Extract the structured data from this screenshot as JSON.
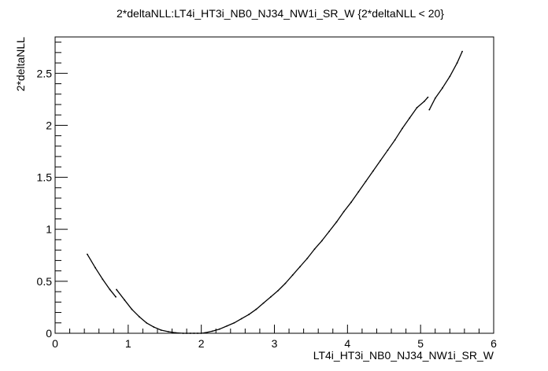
{
  "chart_data": {
    "type": "scatter",
    "title": "2*deltaNLL:LT4i_HT3i_NB0_NJ34_NW1i_SR_W {2*deltaNLL < 20}",
    "xlabel": "LT4i_HT3i_NB0_NJ34_NW1i_SR_W",
    "ylabel": "2*deltaNLL",
    "xlim": [
      0,
      6
    ],
    "ylim": [
      0,
      2.85
    ],
    "xticks": [
      {
        "value": 0,
        "label": "0"
      },
      {
        "value": 1,
        "label": "1"
      },
      {
        "value": 2,
        "label": "2"
      },
      {
        "value": 3,
        "label": "3"
      },
      {
        "value": 4,
        "label": "4"
      },
      {
        "value": 5,
        "label": "5"
      },
      {
        "value": 6,
        "label": "6"
      }
    ],
    "yticks": [
      {
        "value": 0,
        "label": "0"
      },
      {
        "value": 0.5,
        "label": "0.5"
      },
      {
        "value": 1,
        "label": "1"
      },
      {
        "value": 1.5,
        "label": "1.5"
      },
      {
        "value": 2,
        "label": "2"
      },
      {
        "value": 2.5,
        "label": "2.5"
      }
    ],
    "grid": false,
    "legend": "none",
    "colors": {
      "points": "#000000",
      "axes": "#000000"
    },
    "series": [
      {
        "x": [
          0.44,
          0.55,
          0.65,
          0.75,
          0.83,
          0.84,
          0.95,
          1.05,
          1.15,
          1.25,
          1.35,
          1.45,
          1.55,
          1.65,
          1.75,
          1.8,
          1.85,
          1.9,
          1.95,
          2.0,
          2.05,
          2.15,
          2.25,
          2.35,
          2.45,
          2.55,
          2.65,
          2.75,
          2.85,
          2.95,
          3.05,
          3.15,
          3.25,
          3.35,
          3.45,
          3.55,
          3.65,
          3.75,
          3.85,
          3.95,
          4.05,
          4.15,
          4.25,
          4.35,
          4.45,
          4.55,
          4.65,
          4.75,
          4.85,
          4.95,
          5.05,
          5.1,
          5.12,
          5.2,
          5.3,
          5.4,
          5.5,
          5.57
        ],
        "y": [
          0.76,
          0.63,
          0.52,
          0.42,
          0.35,
          0.42,
          0.32,
          0.23,
          0.16,
          0.1,
          0.06,
          0.03,
          0.015,
          0.005,
          0.0,
          0.0,
          0.0,
          0.0,
          0.0,
          0.0,
          0.005,
          0.02,
          0.04,
          0.07,
          0.1,
          0.14,
          0.18,
          0.23,
          0.29,
          0.35,
          0.41,
          0.48,
          0.56,
          0.64,
          0.72,
          0.81,
          0.89,
          0.98,
          1.07,
          1.17,
          1.26,
          1.36,
          1.46,
          1.56,
          1.66,
          1.76,
          1.86,
          1.97,
          2.07,
          2.17,
          2.23,
          2.27,
          2.15,
          2.26,
          2.36,
          2.47,
          2.6,
          2.71
        ]
      }
    ]
  }
}
